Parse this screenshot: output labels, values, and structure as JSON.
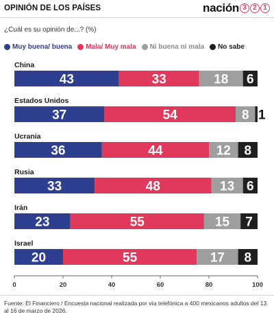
{
  "header": {
    "title": "OPINIÓN DE LOS PAÍSES",
    "logo_word": "nación",
    "logo_digits": [
      "3",
      "2",
      "1"
    ],
    "logo_digit_color": "#e0395b"
  },
  "question": "¿Cuál es su opinión de...? (%)",
  "source": "Fuente: El Financiero / Encuesta nacional realizada por vía telefónica a 400 mexicanos adultos del 13 al 16 de marzo de 2026.",
  "chart_data": {
    "type": "bar",
    "orientation": "horizontal",
    "stacked": true,
    "categories": [
      "China",
      "Estados Unidos",
      "Ucrania",
      "Rusia",
      "Irán",
      "Israel"
    ],
    "series": [
      {
        "name": "Muy buena/ buena",
        "color": "#2f3f8f",
        "values": [
          43,
          37,
          36,
          33,
          23,
          20
        ]
      },
      {
        "name": "Mala/ Muy mala",
        "color": "#e0395b",
        "values": [
          33,
          54,
          44,
          48,
          55,
          55
        ]
      },
      {
        "name": "Ni buena ni mala",
        "color": "#9e9e9e",
        "values": [
          18,
          8,
          12,
          13,
          15,
          17
        ]
      },
      {
        "name": "No sabe",
        "color": "#1f1f1f",
        "values": [
          6,
          1,
          8,
          6,
          7,
          8
        ]
      }
    ],
    "xlim": [
      0,
      100
    ],
    "xticks": [
      0,
      20,
      40,
      60,
      80,
      100
    ],
    "legend_position": "top-left",
    "grid": false
  }
}
